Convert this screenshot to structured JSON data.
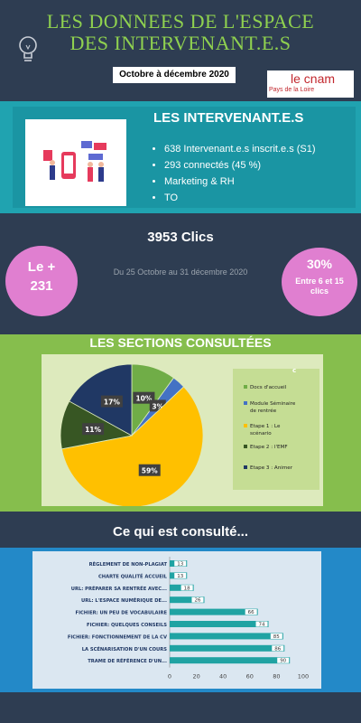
{
  "header": {
    "title_line1": "LES DONNEES DE L'ESPACE",
    "title_line2": "DES INTERVENANT.E.S",
    "period": "Octobre à décembre 2020",
    "logo_line1": "le cnam",
    "logo_line2": "Pays de la Loire"
  },
  "intervenants": {
    "title": "LES INTERVENANT.E.S",
    "items": [
      "638  Intervenant.e.s inscrit.e.s (S1)",
      "293 connectés (45 %)",
      "Marketing & RH",
      "TO"
    ]
  },
  "stats": {
    "clics": "3953 Clics",
    "left_circle_l1": "Le +",
    "left_circle_l2": "231",
    "date_range": "Du 25 Octobre au 31 décembre 2020",
    "right_circle_big": "30%",
    "right_circle_small": "Entre 6 et 15 clics"
  },
  "sections": {
    "title": "LES SECTIONS CONSULTÉES",
    "legend_title": "c"
  },
  "consulted_title": "Ce qui est consulté...",
  "colors": {
    "pie": [
      "#70ad47",
      "#4472c4",
      "#ffc000",
      "#375623",
      "#203864"
    ],
    "bar": "#20a3a3"
  },
  "chart_data": [
    {
      "type": "pie",
      "title": "",
      "legend_title": "c",
      "slices": [
        {
          "label": "Docs d'accueil",
          "value": 10
        },
        {
          "label": "Module Séminaire de rentrée",
          "value": 3
        },
        {
          "label": "Etape 1 : Le scénario",
          "value": 59
        },
        {
          "label": "Etape 2 : l'EMF",
          "value": 11
        },
        {
          "label": "Etape 3 : Animer",
          "value": 17
        }
      ],
      "legend": "right"
    },
    {
      "type": "bar",
      "orientation": "horizontal",
      "categories": [
        "RÈGLEMENT DE NON-PLAGIAT",
        "CHARTE QUALITÉ ACCUEIL",
        "URL: PRÉPARER  SA RENTRÉE AVEC...",
        "URL: L'ESPACE NUMÉRIQUE DE...",
        "FICHIER: UN PEU DE VOCABULAIRE",
        "FICHIER: QUELQUES CONSEILS",
        "FICHIER: FONCTIONNEMENT DE LA CV",
        "LA SCÉNARISATION D'UN COURS",
        "TRAME DE RÉFÉRENCE D'UN..."
      ],
      "values": [
        13,
        13,
        18,
        26,
        66,
        74,
        85,
        86,
        90
      ],
      "xlim": [
        0,
        100
      ],
      "xticks": [
        0,
        20,
        40,
        60,
        80,
        100
      ]
    }
  ]
}
